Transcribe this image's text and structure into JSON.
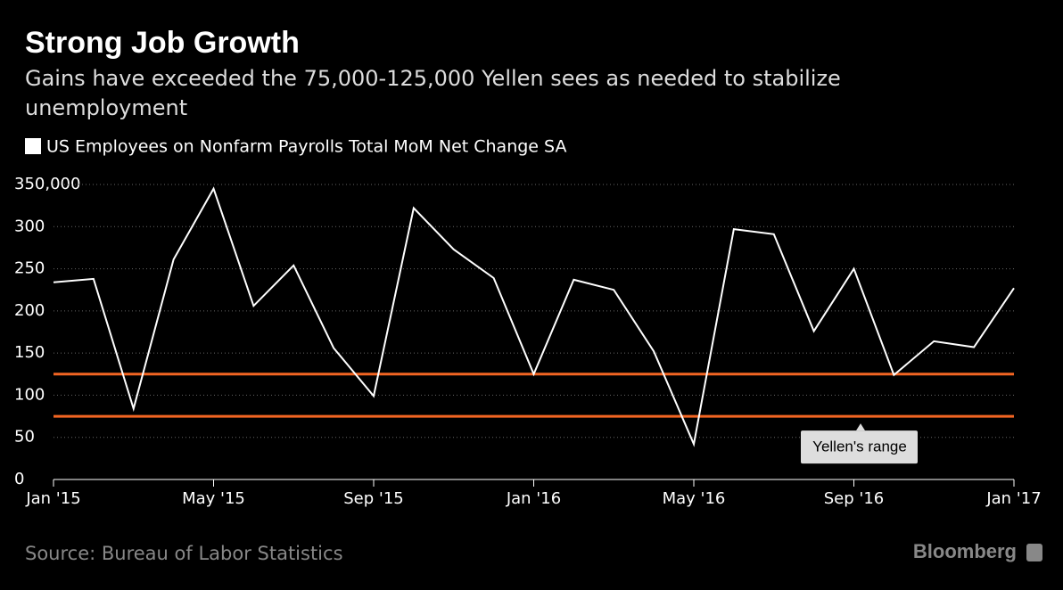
{
  "chart_data": {
    "type": "line",
    "title": "Strong Job Growth",
    "subtitle": "Gains have exceeded the 75,000-125,000 Yellen sees as needed to stabilize unemployment",
    "categories": [
      "Jan '15",
      null,
      null,
      null,
      "May '15",
      null,
      null,
      null,
      "Sep '15",
      null,
      null,
      null,
      "Jan '16",
      null,
      null,
      null,
      "May '16",
      null,
      null,
      null,
      "Sep '16",
      null,
      null,
      null,
      "Jan '17"
    ],
    "series": [
      {
        "name": "US Employees on Nonfarm Payrolls Total MoM Net Change SA",
        "color": "#ffffff",
        "values": [
          234,
          238,
          84,
          261,
          345,
          206,
          254,
          156,
          99,
          322,
          273,
          239,
          125,
          237,
          225,
          152,
          42,
          297,
          291,
          176,
          250,
          124,
          164,
          157,
          227
        ]
      }
    ],
    "ylim": [
      0,
      350
    ],
    "yticks": [
      0,
      50,
      100,
      150,
      200,
      250,
      300,
      {
        "value": 350,
        "label": "350,000"
      }
    ],
    "grid": true,
    "reference_lines": [
      {
        "value": 75,
        "color": "#f26522"
      },
      {
        "value": 125,
        "color": "#f26522"
      }
    ],
    "annotation": "Yellen's range",
    "source": "Source: Bureau of Labor Statistics",
    "brand": "Bloomberg"
  }
}
